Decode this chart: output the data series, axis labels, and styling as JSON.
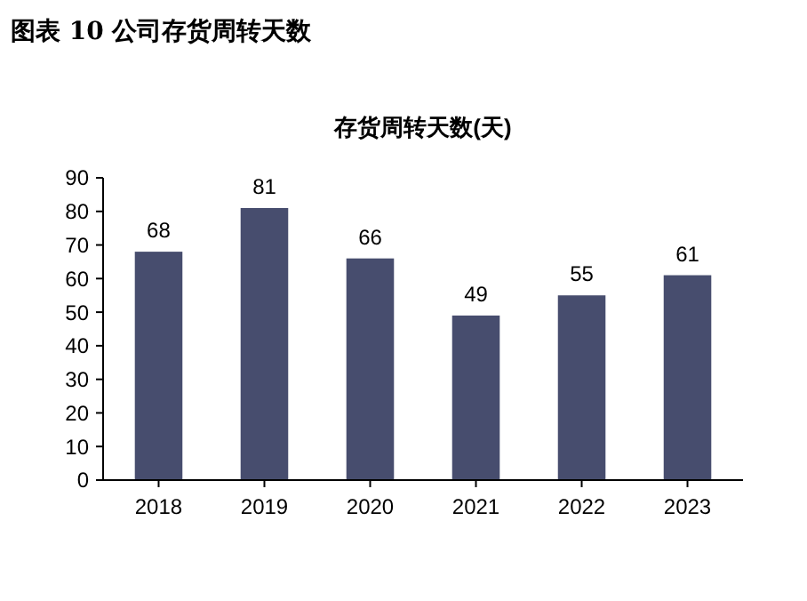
{
  "chart_data": {
    "type": "bar",
    "title": "图表 10  公司存货周转天数",
    "subtitle": "存货周转天数(天)",
    "categories": [
      "2018",
      "2019",
      "2020",
      "2021",
      "2022",
      "2023"
    ],
    "values": [
      68,
      81,
      66,
      49,
      55,
      61
    ],
    "color": "#474d6e",
    "ylim": [
      0,
      90
    ],
    "yticks": [
      0,
      10,
      20,
      30,
      40,
      50,
      60,
      70,
      80,
      90
    ],
    "data_labels": true,
    "grid": false
  }
}
